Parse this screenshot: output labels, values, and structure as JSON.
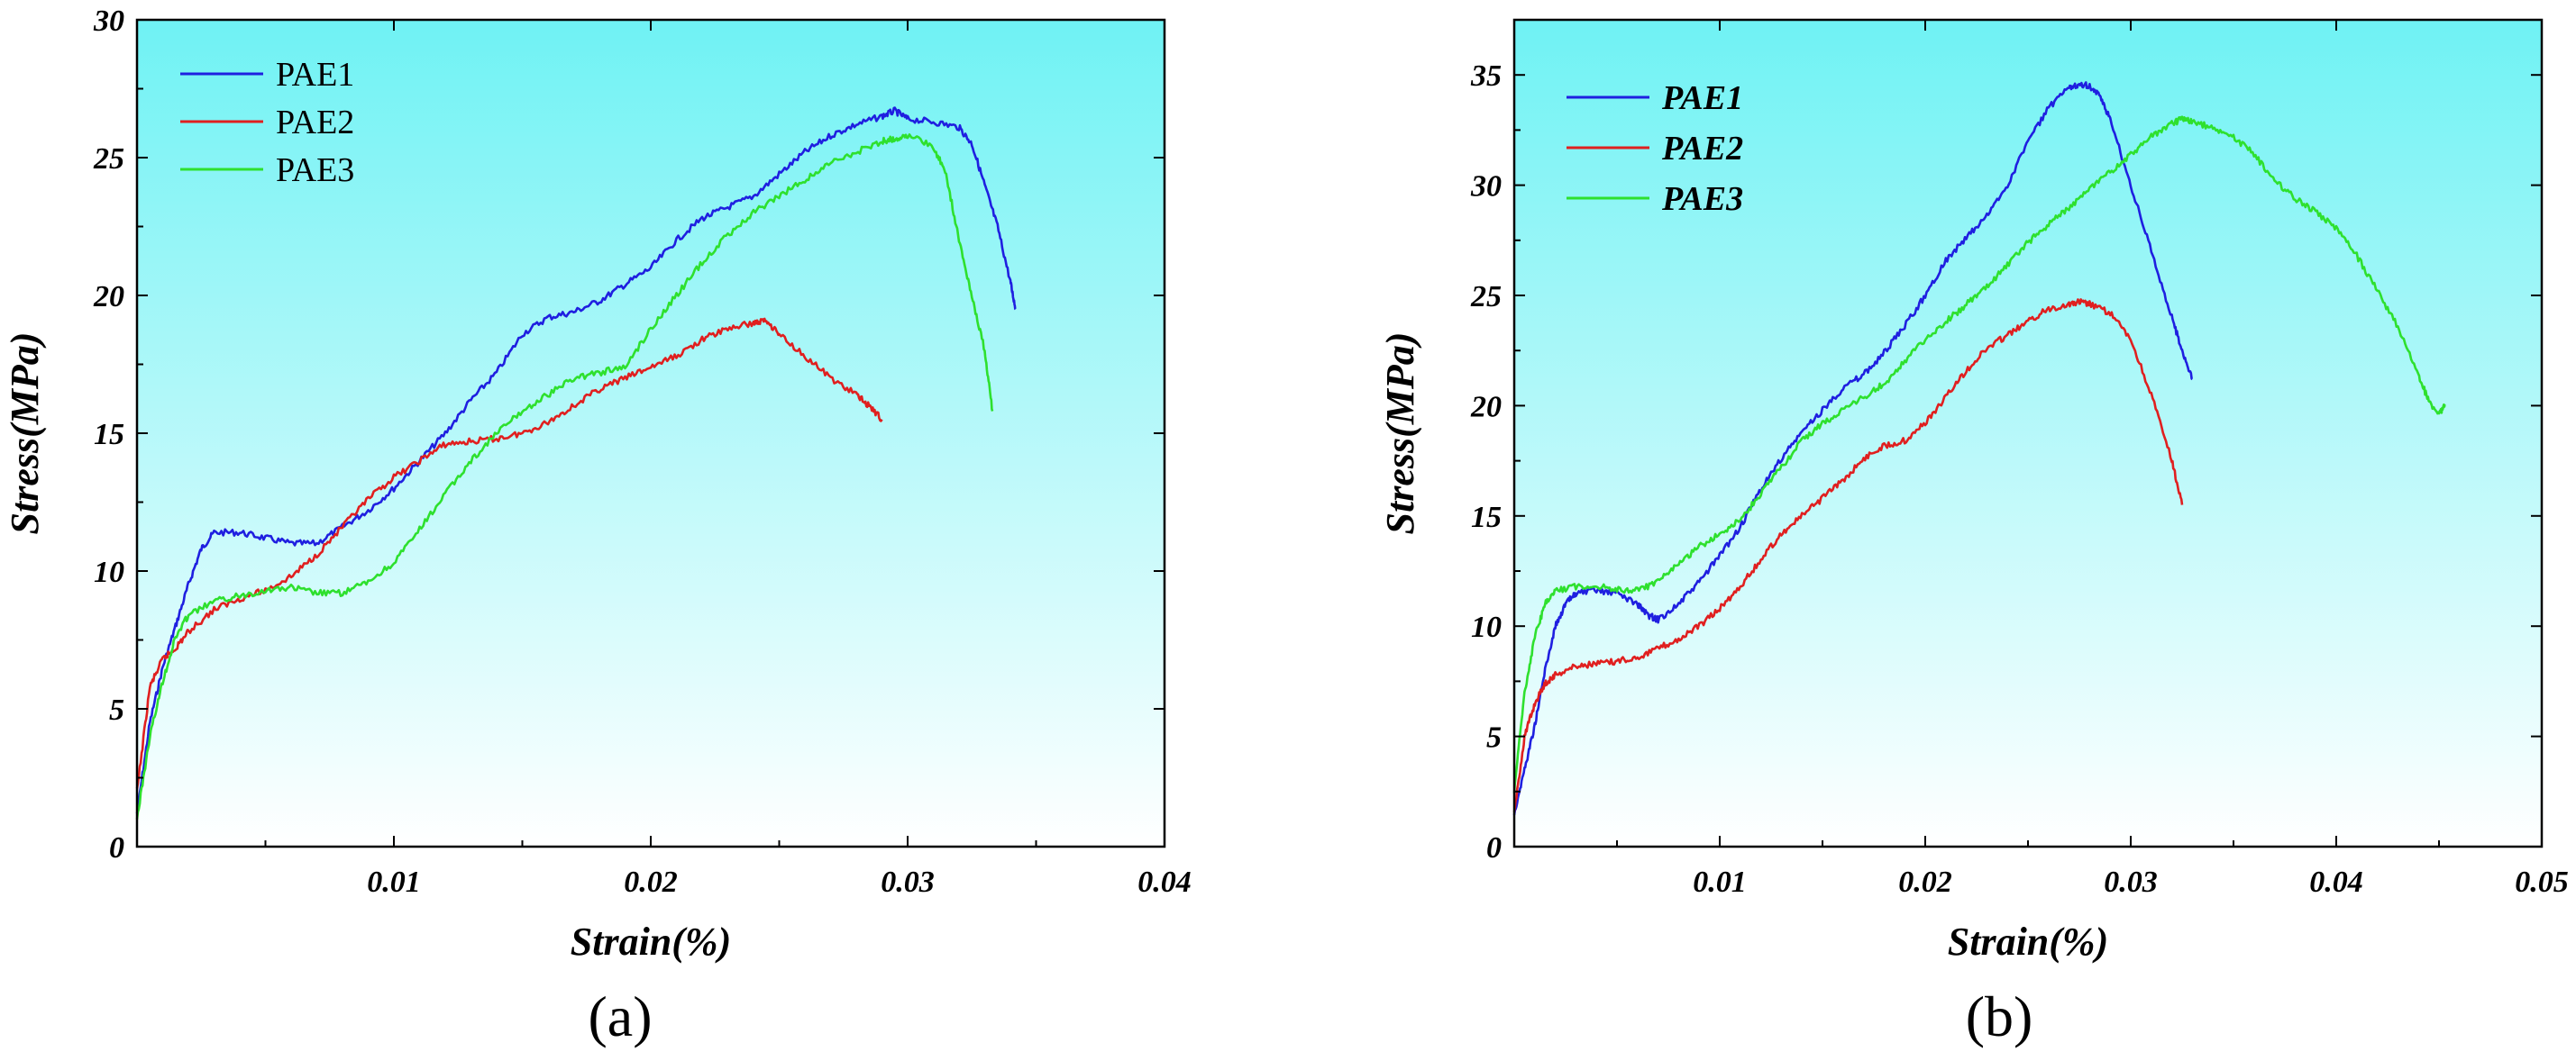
{
  "chart_data": [
    {
      "type": "line",
      "panel_label": "(a)",
      "xlabel": "Strain(%)",
      "ylabel": "Stress(MPa)",
      "xlim": [
        0,
        0.04
      ],
      "ylim": [
        0,
        30
      ],
      "x_tick_labels": [
        "0.01",
        "0.02",
        "0.03",
        "0.04"
      ],
      "x_tick_values": [
        0.01,
        0.02,
        0.03,
        0.04
      ],
      "y_tick_labels": [
        "0",
        "5",
        "10",
        "15",
        "20",
        "25",
        "30"
      ],
      "y_tick_values": [
        0,
        5,
        10,
        15,
        20,
        25,
        30
      ],
      "legend_style": "regular",
      "series": [
        {
          "name": "PAE1",
          "color": "#1f1fe0",
          "x": [
            0.0,
            0.0005,
            0.001,
            0.0015,
            0.002,
            0.0025,
            0.003,
            0.004,
            0.005,
            0.006,
            0.007,
            0.008,
            0.009,
            0.01,
            0.011,
            0.012,
            0.013,
            0.014,
            0.015,
            0.016,
            0.017,
            0.018,
            0.019,
            0.02,
            0.021,
            0.022,
            0.023,
            0.024,
            0.025,
            0.026,
            0.027,
            0.028,
            0.029,
            0.0295,
            0.03,
            0.031,
            0.032,
            0.0325,
            0.033,
            0.0335,
            0.034,
            0.0342
          ],
          "y": [
            1.2,
            4.5,
            6.5,
            8.0,
            9.5,
            10.8,
            11.4,
            11.4,
            11.2,
            11.0,
            11.0,
            11.6,
            12.2,
            13.0,
            14.0,
            15.0,
            16.2,
            17.2,
            18.6,
            19.2,
            19.4,
            19.8,
            20.4,
            21.0,
            22.0,
            22.8,
            23.2,
            23.6,
            24.4,
            25.2,
            25.8,
            26.2,
            26.5,
            26.7,
            26.4,
            26.3,
            26.1,
            25.5,
            24.0,
            22.5,
            20.5,
            19.5
          ]
        },
        {
          "name": "PAE2",
          "color": "#e01f1f",
          "x": [
            0.0,
            0.0005,
            0.001,
            0.0015,
            0.002,
            0.003,
            0.004,
            0.005,
            0.006,
            0.007,
            0.008,
            0.009,
            0.01,
            0.011,
            0.012,
            0.013,
            0.014,
            0.015,
            0.016,
            0.017,
            0.018,
            0.019,
            0.02,
            0.021,
            0.022,
            0.023,
            0.024,
            0.0245,
            0.025,
            0.026,
            0.027,
            0.028,
            0.0285,
            0.029
          ],
          "y": [
            2.0,
            5.8,
            6.8,
            7.2,
            7.8,
            8.6,
            9.0,
            9.3,
            9.8,
            10.6,
            11.6,
            12.6,
            13.4,
            14.0,
            14.6,
            14.7,
            14.8,
            15.0,
            15.4,
            16.0,
            16.6,
            17.0,
            17.4,
            17.8,
            18.4,
            18.8,
            19.0,
            19.1,
            18.6,
            17.8,
            17.0,
            16.4,
            16.0,
            15.5
          ]
        },
        {
          "name": "PAE3",
          "color": "#2ee02e",
          "x": [
            0.0,
            0.0005,
            0.001,
            0.0015,
            0.002,
            0.003,
            0.004,
            0.005,
            0.006,
            0.007,
            0.008,
            0.009,
            0.01,
            0.011,
            0.012,
            0.013,
            0.014,
            0.015,
            0.016,
            0.017,
            0.018,
            0.019,
            0.02,
            0.021,
            0.022,
            0.023,
            0.024,
            0.025,
            0.026,
            0.027,
            0.028,
            0.029,
            0.0295,
            0.03,
            0.031,
            0.0315,
            0.032,
            0.0325,
            0.033,
            0.0333
          ],
          "y": [
            1.0,
            4.0,
            6.0,
            7.6,
            8.4,
            8.9,
            9.1,
            9.3,
            9.4,
            9.2,
            9.2,
            9.6,
            10.3,
            11.5,
            12.8,
            14.0,
            15.0,
            15.8,
            16.4,
            17.0,
            17.2,
            17.4,
            18.8,
            20.0,
            21.2,
            22.2,
            23.0,
            23.6,
            24.2,
            24.8,
            25.2,
            25.6,
            25.7,
            25.8,
            25.4,
            24.4,
            22.0,
            20.0,
            18.0,
            15.8
          ]
        }
      ]
    },
    {
      "type": "line",
      "panel_label": "(b)",
      "xlabel": "Strain(%)",
      "ylabel": "Stress(MPa)",
      "xlim": [
        0,
        0.05
      ],
      "ylim": [
        0,
        37.5
      ],
      "x_tick_labels": [
        "0.01",
        "0.02",
        "0.03",
        "0.04",
        "0.05"
      ],
      "x_tick_values": [
        0.01,
        0.02,
        0.03,
        0.04,
        0.05
      ],
      "y_tick_labels": [
        "0",
        "5",
        "10",
        "15",
        "20",
        "25",
        "30",
        "35"
      ],
      "y_tick_values": [
        0,
        5,
        10,
        15,
        20,
        25,
        30,
        35
      ],
      "legend_style": "bold-italic",
      "series": [
        {
          "name": "PAE1",
          "color": "#1f1fe0",
          "x": [
            0.0,
            0.0005,
            0.001,
            0.0015,
            0.002,
            0.0025,
            0.003,
            0.004,
            0.005,
            0.006,
            0.0065,
            0.007,
            0.008,
            0.009,
            0.01,
            0.011,
            0.012,
            0.013,
            0.014,
            0.015,
            0.016,
            0.017,
            0.018,
            0.019,
            0.02,
            0.021,
            0.022,
            0.023,
            0.024,
            0.025,
            0.026,
            0.027,
            0.0275,
            0.028,
            0.0285,
            0.029,
            0.03,
            0.031,
            0.032,
            0.0325,
            0.033
          ],
          "y": [
            1.5,
            3.5,
            5.5,
            8.0,
            10.0,
            11.0,
            11.5,
            11.6,
            11.5,
            11.0,
            10.5,
            10.3,
            11.0,
            12.0,
            13.2,
            14.5,
            16.2,
            17.6,
            18.8,
            19.8,
            20.8,
            21.4,
            22.4,
            23.6,
            25.0,
            26.6,
            27.6,
            28.6,
            30.0,
            32.0,
            33.5,
            34.4,
            34.6,
            34.5,
            34.0,
            33.0,
            30.0,
            27.0,
            24.0,
            22.5,
            21.2
          ]
        },
        {
          "name": "PAE2",
          "color": "#e01f1f",
          "x": [
            0.0,
            0.0005,
            0.001,
            0.0015,
            0.002,
            0.003,
            0.004,
            0.005,
            0.006,
            0.007,
            0.008,
            0.009,
            0.01,
            0.011,
            0.012,
            0.013,
            0.014,
            0.015,
            0.016,
            0.017,
            0.018,
            0.019,
            0.02,
            0.021,
            0.022,
            0.023,
            0.024,
            0.025,
            0.026,
            0.027,
            0.0275,
            0.028,
            0.029,
            0.03,
            0.031,
            0.032,
            0.0325
          ],
          "y": [
            1.5,
            5.0,
            6.5,
            7.4,
            7.8,
            8.2,
            8.3,
            8.4,
            8.6,
            9.0,
            9.4,
            10.0,
            10.8,
            11.8,
            13.0,
            14.2,
            15.0,
            15.8,
            16.6,
            17.6,
            18.2,
            18.4,
            19.2,
            20.4,
            21.6,
            22.6,
            23.2,
            23.8,
            24.4,
            24.6,
            24.7,
            24.6,
            24.2,
            23.0,
            20.5,
            17.5,
            15.5
          ]
        },
        {
          "name": "PAE3",
          "color": "#2ee02e",
          "x": [
            0.0,
            0.0005,
            0.001,
            0.0015,
            0.002,
            0.003,
            0.004,
            0.005,
            0.006,
            0.007,
            0.008,
            0.009,
            0.01,
            0.011,
            0.012,
            0.013,
            0.014,
            0.015,
            0.016,
            0.017,
            0.018,
            0.019,
            0.02,
            0.021,
            0.022,
            0.023,
            0.024,
            0.025,
            0.026,
            0.027,
            0.028,
            0.029,
            0.03,
            0.031,
            0.032,
            0.0325,
            0.033,
            0.034,
            0.035,
            0.036,
            0.037,
            0.038,
            0.039,
            0.04,
            0.041,
            0.042,
            0.043,
            0.044,
            0.0445,
            0.045,
            0.0453
          ],
          "y": [
            2.5,
            7.0,
            9.5,
            11.0,
            11.6,
            11.8,
            11.8,
            11.7,
            11.6,
            12.0,
            12.8,
            13.6,
            14.2,
            14.8,
            16.0,
            17.2,
            18.4,
            19.2,
            19.8,
            20.4,
            21.0,
            22.0,
            23.0,
            23.8,
            24.6,
            25.4,
            26.4,
            27.4,
            28.2,
            29.0,
            29.8,
            30.6,
            31.4,
            32.2,
            32.8,
            33.0,
            32.9,
            32.6,
            32.2,
            31.4,
            30.2,
            29.4,
            28.8,
            28.0,
            26.8,
            25.2,
            23.6,
            21.4,
            20.2,
            19.6,
            20.0
          ]
        }
      ]
    }
  ]
}
